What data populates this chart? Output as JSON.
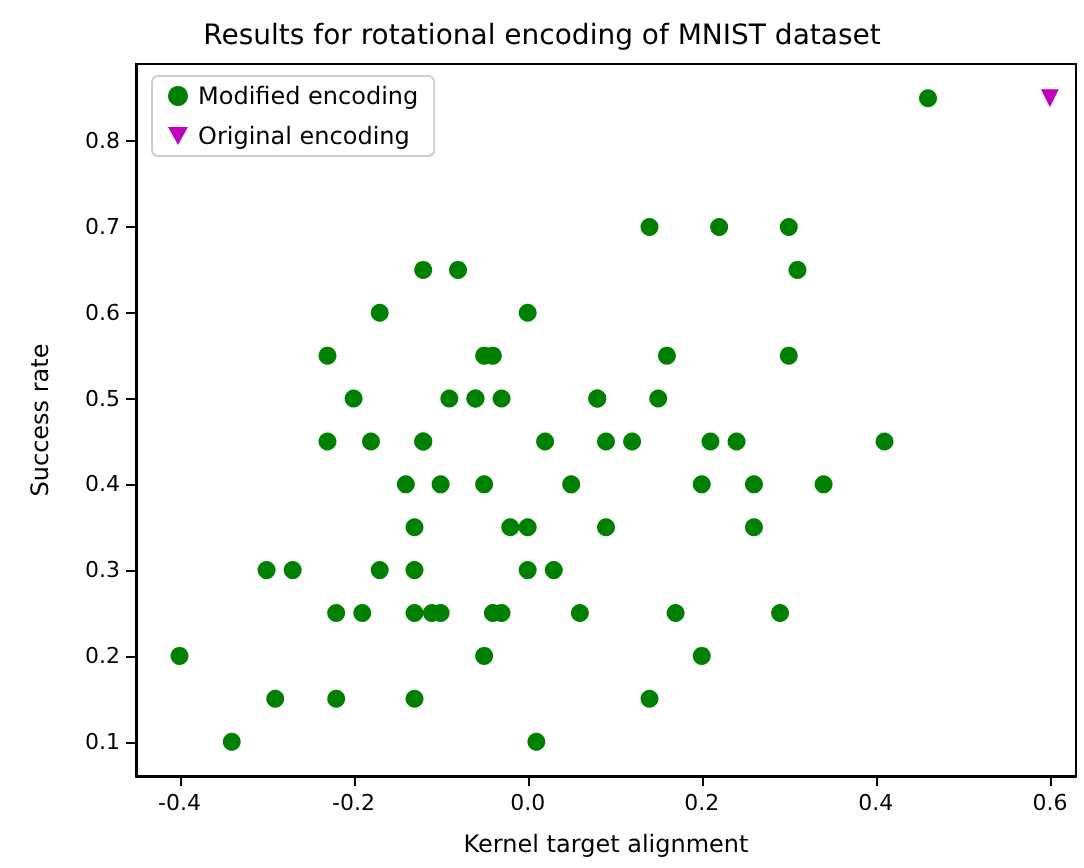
{
  "chart_data": {
    "type": "scatter",
    "title": "Results for rotational encoding of MNIST dataset",
    "xlabel": "Kernel target alignment",
    "ylabel": "Success rate",
    "xlim": [
      -0.45,
      0.63
    ],
    "ylim": [
      0.06,
      0.89
    ],
    "xticks": [
      -0.4,
      -0.2,
      {
        "value": 0,
        "label": "0.0"
      },
      0.2,
      0.4,
      0.6
    ],
    "yticks": [
      0.1,
      0.2,
      0.3,
      0.4,
      0.5,
      0.6,
      0.7,
      0.8
    ],
    "grid": false,
    "legend": "top left",
    "series": [
      {
        "name": "Modified encoding",
        "color": "#008000",
        "marker": "circle",
        "x": [
          0.46,
          0.14,
          0.22,
          0.3,
          -0.12,
          -0.08,
          0.31,
          -0.17,
          0.0,
          -0.23,
          -0.05,
          -0.04,
          0.16,
          0.3,
          -0.2,
          -0.09,
          -0.06,
          -0.06,
          -0.03,
          0.08,
          0.08,
          0.15,
          -0.23,
          -0.18,
          -0.12,
          -0.12,
          0.02,
          0.09,
          0.12,
          0.21,
          0.24,
          0.41,
          -0.14,
          -0.1,
          -0.05,
          0.05,
          0.2,
          0.26,
          0.34,
          -0.13,
          -0.02,
          0.0,
          0.09,
          0.26,
          -0.3,
          -0.27,
          -0.17,
          -0.13,
          0.0,
          0.03,
          -0.22,
          -0.19,
          -0.13,
          -0.11,
          -0.1,
          -0.04,
          -0.03,
          0.06,
          0.17,
          0.29,
          -0.4,
          -0.05,
          0.2,
          -0.29,
          -0.22,
          -0.13,
          0.14,
          -0.34,
          0.01
        ],
        "values": [
          0.85,
          0.7,
          0.7,
          0.7,
          0.65,
          0.65,
          0.65,
          0.6,
          0.6,
          0.55,
          0.55,
          0.55,
          0.55,
          0.55,
          0.5,
          0.5,
          0.5,
          0.5,
          0.5,
          0.5,
          0.5,
          0.5,
          0.45,
          0.45,
          0.45,
          0.45,
          0.45,
          0.45,
          0.45,
          0.45,
          0.45,
          0.45,
          0.4,
          0.4,
          0.4,
          0.4,
          0.4,
          0.4,
          0.4,
          0.35,
          0.35,
          0.35,
          0.35,
          0.35,
          0.3,
          0.3,
          0.3,
          0.3,
          0.3,
          0.3,
          0.25,
          0.25,
          0.25,
          0.25,
          0.25,
          0.25,
          0.25,
          0.25,
          0.25,
          0.25,
          0.2,
          0.2,
          0.2,
          0.15,
          0.15,
          0.15,
          0.15,
          0.1,
          0.1
        ]
      },
      {
        "name": "Original encoding",
        "color": "#bf00bf",
        "marker": "triangle",
        "x": [
          0.6
        ],
        "values": [
          0.85
        ]
      }
    ]
  }
}
